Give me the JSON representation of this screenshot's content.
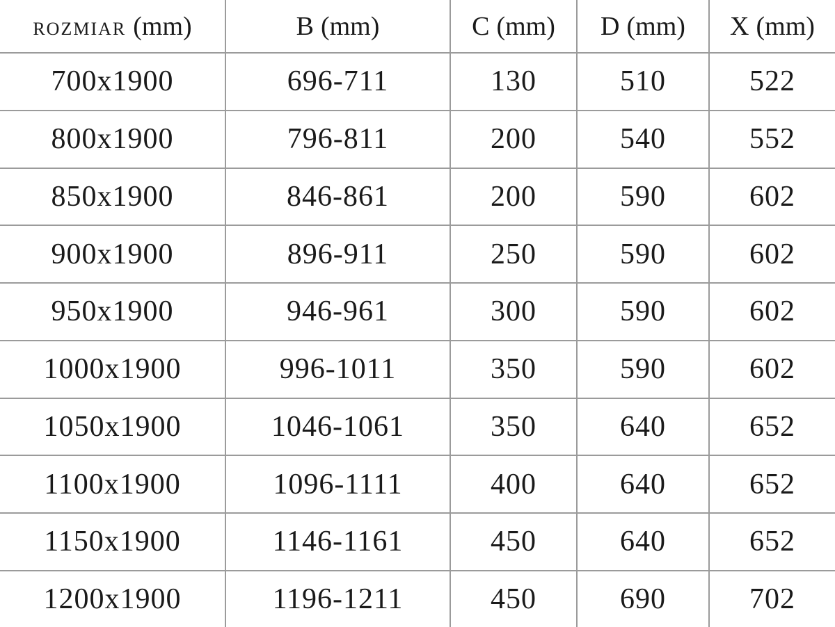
{
  "table": {
    "columns": [
      {
        "id": "rozmiar",
        "label": "ROZMIAR",
        "unit": "(mm)"
      },
      {
        "id": "b",
        "label": "B",
        "unit": "(mm)"
      },
      {
        "id": "c",
        "label": "C",
        "unit": "(mm)"
      },
      {
        "id": "d",
        "label": "D",
        "unit": "(mm)"
      },
      {
        "id": "x",
        "label": "X",
        "unit": "(mm)"
      }
    ],
    "rows": [
      [
        "700x1900",
        "696-711",
        "130",
        "510",
        "522"
      ],
      [
        "800x1900",
        "796-811",
        "200",
        "540",
        "552"
      ],
      [
        "850x1900",
        "846-861",
        "200",
        "590",
        "602"
      ],
      [
        "900x1900",
        "896-911",
        "250",
        "590",
        "602"
      ],
      [
        "950x1900",
        "946-961",
        "300",
        "590",
        "602"
      ],
      [
        "1000x1900",
        "996-1011",
        "350",
        "590",
        "602"
      ],
      [
        "1050x1900",
        "1046-1061",
        "350",
        "640",
        "652"
      ],
      [
        "1100x1900",
        "1096-1111",
        "400",
        "640",
        "652"
      ],
      [
        "1150x1900",
        "1146-1161",
        "450",
        "640",
        "652"
      ],
      [
        "1200x1900",
        "1196-1211",
        "450",
        "690",
        "702"
      ]
    ]
  },
  "colors": {
    "border": "#9b9b9b",
    "text": "#1a1a1a",
    "background": "#ffffff"
  }
}
